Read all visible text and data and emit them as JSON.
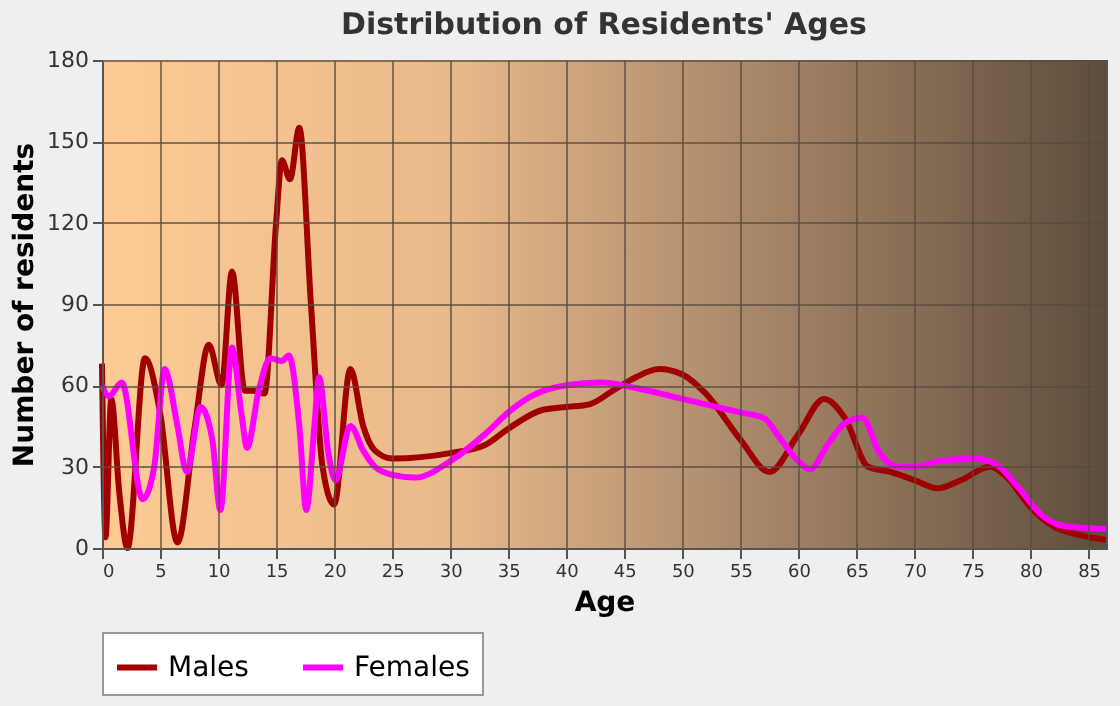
{
  "chart_data": {
    "type": "line",
    "title": "Distribution of Residents' Ages",
    "xlabel": "Age",
    "ylabel": "Number of residents",
    "xlim": [
      0,
      86.5
    ],
    "xticks": [
      0,
      5,
      10,
      15,
      20,
      25,
      30,
      35,
      40,
      45,
      50,
      55,
      60,
      65,
      70,
      75,
      80,
      85
    ],
    "ylim": [
      0,
      180
    ],
    "yticks": [
      0,
      30,
      60,
      90,
      120,
      150,
      180
    ],
    "grid": true,
    "legend": "bottom",
    "marker": "none",
    "line_style": "solid",
    "series": [
      {
        "name": "Males",
        "color": "#a00000",
        "x": [
          0,
          0.3,
          0.8,
          1.5,
          2.2,
          3.7,
          5,
          6.5,
          8,
          9.2,
          10.3,
          11.2,
          12.3,
          13,
          14,
          15,
          15.5,
          16.2,
          17,
          18,
          19,
          20,
          21.4,
          22.5,
          23.5,
          25,
          30,
          33,
          35,
          38,
          40,
          42,
          44,
          46,
          48,
          50,
          52,
          55,
          57.5,
          60,
          62.2,
          64,
          66,
          68,
          70,
          72,
          74,
          76.5,
          78,
          80,
          82,
          84,
          86.5
        ],
        "values": [
          68,
          4,
          55,
          20,
          0,
          70,
          50,
          2,
          45,
          75,
          60,
          102,
          58,
          58,
          57,
          120,
          143,
          136,
          155,
          90,
          30,
          16,
          66,
          45,
          36,
          33,
          35,
          38,
          44,
          51,
          52,
          53,
          58,
          63,
          66,
          64,
          57,
          40,
          28,
          42,
          55,
          48,
          30,
          28,
          25,
          22,
          25,
          30,
          26,
          15,
          8,
          5,
          3
        ]
      },
      {
        "name": "Females",
        "color": "#ff00ff",
        "x": [
          0,
          0.6,
          1.7,
          3.5,
          4.5,
          5.4,
          6.5,
          7.3,
          8.5,
          9.5,
          10.2,
          11.2,
          12,
          12.5,
          13.5,
          14.5,
          15.5,
          16.1,
          17,
          17.6,
          18.3,
          18.7,
          19.5,
          20.1,
          21.4,
          22.5,
          23.5,
          25,
          27,
          30,
          33,
          35,
          37,
          40,
          43,
          46,
          50,
          55,
          57,
          58.5,
          60,
          61,
          62.5,
          64,
          65.5,
          67,
          68.5,
          70,
          72,
          75,
          77,
          79,
          81,
          83,
          86.5
        ],
        "values": [
          60,
          56,
          61,
          18,
          30,
          66,
          45,
          28,
          52,
          40,
          14,
          74,
          50,
          37,
          58,
          70,
          69,
          71,
          45,
          14,
          45,
          63,
          35,
          25,
          45,
          36,
          30,
          27,
          26,
          32,
          42,
          50,
          56,
          60,
          61,
          59,
          55,
          50,
          48,
          40,
          32,
          29,
          38,
          46,
          48,
          35,
          30,
          30,
          32,
          33,
          31,
          22,
          12,
          8,
          7
        ]
      }
    ]
  }
}
